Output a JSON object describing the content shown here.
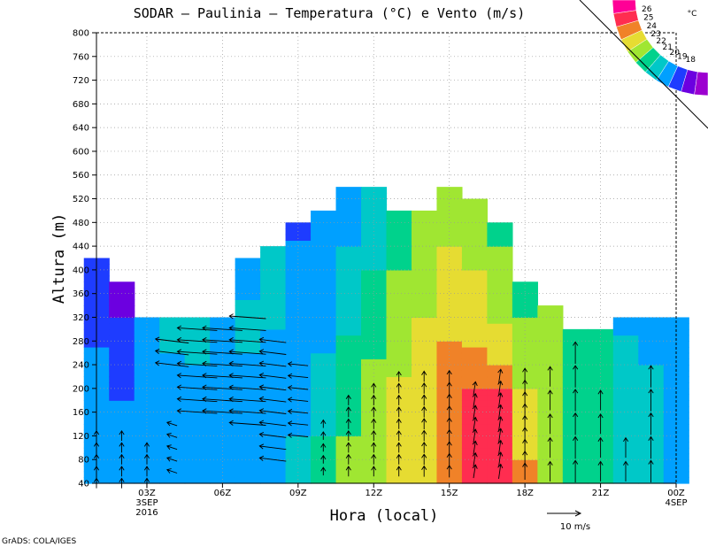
{
  "chart_data": {
    "type": "heatmap",
    "title": "SODAR – Paulinia – Temperatura (°C) e Vento (m/s)",
    "xlabel": "Hora (local)",
    "ylabel": "Altura (m)",
    "ylim": [
      40,
      800
    ],
    "xlim": [
      0,
      22.5
    ],
    "y_ticks": [
      40,
      80,
      120,
      160,
      200,
      240,
      280,
      320,
      360,
      400,
      440,
      480,
      520,
      560,
      600,
      640,
      680,
      720,
      760,
      800
    ],
    "x_ticks": [
      {
        "x": 2,
        "label": "03Z",
        "sub1": "3SEP",
        "sub2": "2016"
      },
      {
        "x": 5,
        "label": "06Z",
        "sub1": "",
        "sub2": ""
      },
      {
        "x": 8,
        "label": "09Z",
        "sub1": "",
        "sub2": ""
      },
      {
        "x": 11,
        "label": "12Z",
        "sub1": "",
        "sub2": ""
      },
      {
        "x": 14,
        "label": "15Z",
        "sub1": "",
        "sub2": ""
      },
      {
        "x": 17,
        "label": "18Z",
        "sub1": "",
        "sub2": ""
      },
      {
        "x": 20,
        "label": "21Z",
        "sub1": "",
        "sub2": ""
      },
      {
        "x": 23,
        "label": "00Z",
        "sub1": "4SEP",
        "sub2": ""
      }
    ],
    "top_height": [
      420,
      380,
      320,
      320,
      320,
      320,
      420,
      440,
      480,
      500,
      540,
      540,
      500,
      500,
      540,
      520,
      480,
      380,
      340,
      300,
      300,
      320,
      320,
      320
    ],
    "columns": [
      [
        [
          420,
          19.0
        ],
        [
          380,
          19.0
        ],
        [
          220,
          20.5
        ],
        [
          40,
          20.5
        ]
      ],
      [
        [
          380,
          18.8
        ],
        [
          200,
          19.4
        ],
        [
          170,
          20.5
        ],
        [
          40,
          20.5
        ]
      ],
      [
        [
          320,
          20.5
        ],
        [
          40,
          20.5
        ]
      ],
      [
        [
          320,
          21.8
        ],
        [
          280,
          21.3
        ],
        [
          240,
          20.8
        ],
        [
          200,
          20.5
        ],
        [
          40,
          20.5
        ]
      ],
      [
        [
          320,
          22.0
        ],
        [
          240,
          21.0
        ],
        [
          200,
          20.5
        ],
        [
          40,
          20.5
        ]
      ],
      [
        [
          320,
          21.0
        ],
        [
          40,
          20.5
        ]
      ],
      [
        [
          420,
          20.8
        ],
        [
          280,
          21.2
        ],
        [
          200,
          20.5
        ],
        [
          40,
          20.5
        ]
      ],
      [
        [
          440,
          21.3
        ],
        [
          200,
          20.8
        ],
        [
          40,
          20.5
        ]
      ],
      [
        [
          480,
          18.8
        ],
        [
          440,
          20.5
        ],
        [
          200,
          20.5
        ],
        [
          120,
          21.0
        ],
        [
          40,
          21.5
        ]
      ],
      [
        [
          500,
          20.5
        ],
        [
          320,
          20.8
        ],
        [
          200,
          21.2
        ],
        [
          120,
          22.0
        ],
        [
          40,
          22.5
        ]
      ],
      [
        [
          540,
          20.5
        ],
        [
          400,
          21.2
        ],
        [
          320,
          21.8
        ],
        [
          200,
          22.5
        ],
        [
          120,
          23.0
        ],
        [
          40,
          23.5
        ]
      ],
      [
        [
          540,
          21.0
        ],
        [
          400,
          22.0
        ],
        [
          280,
          22.8
        ],
        [
          160,
          23.5
        ],
        [
          40,
          24.0
        ]
      ],
      [
        [
          500,
          22.5
        ],
        [
          400,
          23.0
        ],
        [
          280,
          23.8
        ],
        [
          160,
          24.2
        ],
        [
          40,
          24.5
        ]
      ],
      [
        [
          500,
          23.5
        ],
        [
          400,
          23.8
        ],
        [
          320,
          24.0
        ],
        [
          200,
          24.5
        ],
        [
          40,
          24.8
        ]
      ],
      [
        [
          540,
          23.5
        ],
        [
          400,
          24.2
        ],
        [
          280,
          25.0
        ],
        [
          160,
          25.5
        ],
        [
          40,
          25.5
        ]
      ],
      [
        [
          520,
          23.0
        ],
        [
          400,
          24.0
        ],
        [
          320,
          24.5
        ],
        [
          240,
          25.3
        ],
        [
          200,
          26.0
        ],
        [
          40,
          26.2
        ]
      ],
      [
        [
          480,
          22.5
        ],
        [
          400,
          23.5
        ],
        [
          280,
          24.2
        ],
        [
          240,
          25.0
        ],
        [
          200,
          26.0
        ],
        [
          40,
          26.2
        ]
      ],
      [
        [
          380,
          22.5
        ],
        [
          280,
          23.3
        ],
        [
          200,
          24.0
        ],
        [
          120,
          24.3
        ],
        [
          80,
          25.0
        ],
        [
          40,
          25.5
        ]
      ],
      [
        [
          340,
          23.0
        ],
        [
          200,
          23.3
        ],
        [
          80,
          23.5
        ],
        [
          40,
          23.8
        ]
      ],
      [
        [
          300,
          22.8
        ],
        [
          200,
          22.8
        ],
        [
          120,
          22.6
        ],
        [
          40,
          22.5
        ]
      ],
      [
        [
          300,
          22.0
        ],
        [
          200,
          22.2
        ],
        [
          40,
          22.0
        ]
      ],
      [
        [
          320,
          20.5
        ],
        [
          280,
          21.2
        ],
        [
          200,
          21.5
        ],
        [
          40,
          21.0
        ]
      ],
      [
        [
          320,
          20.5
        ],
        [
          240,
          21.0
        ],
        [
          160,
          21.2
        ],
        [
          40,
          21.2
        ]
      ],
      [
        [
          320,
          20.5
        ],
        [
          200,
          20.5
        ],
        [
          40,
          20.6
        ]
      ]
    ],
    "wind_vectors": [
      {
        "x": 0,
        "heights": [
          40,
          60,
          80,
          100,
          120
        ],
        "u": 0,
        "v": 1.5
      },
      {
        "x": 1,
        "heights": [
          40,
          60,
          80,
          100,
          120
        ],
        "u": 0,
        "v": 1.5
      },
      {
        "x": 2,
        "heights": [
          40,
          60,
          80,
          100
        ],
        "u": 0,
        "v": 1.5
      },
      {
        "x": 3,
        "heights": [
          60,
          80,
          100,
          120,
          140
        ],
        "u": -1.5,
        "v": 0.5
      },
      {
        "x": 3,
        "heights": [
          240,
          260,
          280
        ],
        "u": -5,
        "v": 0.6
      },
      {
        "x": 4,
        "heights": [
          160,
          180,
          200,
          220,
          240,
          260,
          280,
          300
        ],
        "u": -6,
        "v": 0.4
      },
      {
        "x": 5,
        "heights": [
          160,
          180,
          200,
          220,
          240,
          260,
          280,
          300
        ],
        "u": -6,
        "v": 0.4
      },
      {
        "x": 6,
        "heights": [
          140,
          160,
          180,
          200,
          220,
          240,
          260,
          280,
          300,
          320
        ],
        "u": -5.5,
        "v": 0.4
      },
      {
        "x": 7,
        "heights": [
          80,
          100,
          120,
          140,
          160,
          180,
          200,
          220,
          240,
          260,
          280
        ],
        "u": -4,
        "v": 0.5
      },
      {
        "x": 8,
        "heights": [
          120,
          140,
          160,
          180,
          200,
          220,
          240
        ],
        "u": -3,
        "v": 0.3
      },
      {
        "x": 9,
        "heights": [
          60,
          80,
          100,
          120,
          140
        ],
        "u": 0,
        "v": 1.2
      },
      {
        "x": 10,
        "heights": [
          60,
          80,
          100,
          120,
          140,
          160,
          180
        ],
        "u": 0,
        "v": 1.5
      },
      {
        "x": 11,
        "heights": [
          60,
          80,
          100,
          120,
          140,
          160,
          180,
          200
        ],
        "u": 0,
        "v": 1.5
      },
      {
        "x": 12,
        "heights": [
          60,
          80,
          100,
          120,
          140,
          160,
          180,
          200,
          220
        ],
        "u": 0,
        "v": 1.5
      },
      {
        "x": 13,
        "heights": [
          60,
          80,
          100,
          120,
          140,
          160,
          180,
          200,
          220
        ],
        "u": 0,
        "v": 1.6
      },
      {
        "x": 14,
        "heights": [
          60,
          80,
          100,
          120,
          140,
          160,
          180,
          200,
          220
        ],
        "u": 0,
        "v": 1.8
      },
      {
        "x": 15,
        "heights": [
          60,
          80,
          100,
          120,
          140,
          160,
          180,
          200
        ],
        "u": 0.3,
        "v": 2
      },
      {
        "x": 16,
        "heights": [
          60,
          80,
          100,
          120,
          140,
          160,
          180,
          200,
          220
        ],
        "u": 0.3,
        "v": 2.2
      },
      {
        "x": 17,
        "heights": [
          60,
          80,
          100,
          120,
          140,
          160,
          180,
          200,
          220
        ],
        "u": 0,
        "v": 2.5
      },
      {
        "x": 18,
        "heights": [
          60,
          100,
          140,
          180,
          220
        ],
        "u": 0,
        "v": 3
      },
      {
        "x": 19,
        "heights": [
          60,
          100,
          140,
          180,
          220,
          260
        ],
        "u": 0,
        "v": 3.3
      },
      {
        "x": 20,
        "heights": [
          60,
          100,
          140,
          180
        ],
        "u": 0,
        "v": 3
      },
      {
        "x": 21,
        "heights": [
          60,
          100
        ],
        "u": 0,
        "v": 3
      },
      {
        "x": 22,
        "heights": [
          60,
          100,
          140,
          180,
          220
        ],
        "u": 0,
        "v": 3.3
      }
    ],
    "colorbar": {
      "unit": "°C",
      "levels": [
        "18",
        "19",
        "20",
        "21",
        "22",
        "23",
        "24",
        "25",
        "26"
      ],
      "colors": [
        "#9c00d0",
        "#6c00e0",
        "#1e3cff",
        "#00a0ff",
        "#00c8c8",
        "#00d28c",
        "#a0e632",
        "#e6dc32",
        "#f08228",
        "#ff2d50",
        "#ff0096"
      ],
      "boundaries": [
        18,
        19,
        20,
        21,
        22,
        23,
        24,
        25,
        26
      ]
    },
    "reference_vector": {
      "label": "10 m/s",
      "magnitude": 10
    },
    "credit": "GrADS: COLA/IGES"
  }
}
